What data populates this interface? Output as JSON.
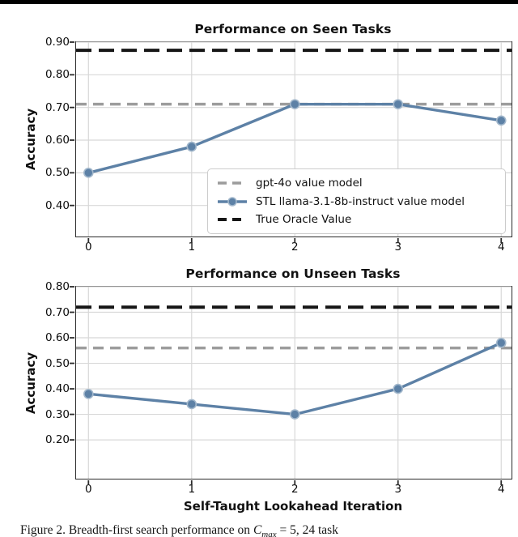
{
  "figure": {
    "caption": {
      "lead": "Figure 2. Breadth-first search performance on ",
      "var": "C",
      "sub": "max",
      "tail": " = 5, 24 task"
    },
    "colors": {
      "stl_line": "#5d81a6",
      "stl_marker_edge": "#a3b8cc",
      "gpt4o_line": "#9c9c9c",
      "oracle_line": "#161616",
      "grid": "#d8d8d8",
      "spine": "#2b2b2b",
      "top_rule": "#000000"
    }
  },
  "chart_data": [
    {
      "type": "line",
      "title": "Performance on Seen Tasks",
      "ylabel": "Accuracy",
      "xlabel": "",
      "x": [
        0,
        1,
        2,
        3,
        4
      ],
      "xtick_labels": [
        "0",
        "1",
        "2",
        "3",
        "4"
      ],
      "yticks": [
        0.4,
        0.5,
        0.6,
        0.7,
        0.8,
        0.9
      ],
      "ytick_labels": [
        "0.40",
        "0.50",
        "0.60",
        "0.70",
        "0.80",
        "0.90"
      ],
      "xlim": [
        -0.12,
        4.1
      ],
      "ylim": [
        0.305,
        0.9
      ],
      "grid": true,
      "series": [
        {
          "name": "gpt-4o value model",
          "kind": "hline",
          "value": 0.71,
          "color": "#9c9c9c",
          "width": 3.5,
          "dash": "13 8"
        },
        {
          "name": "STL llama-3.1-8b-instruct value model",
          "kind": "line-marker",
          "values": [
            0.5,
            0.58,
            0.71,
            0.71,
            0.66
          ],
          "color": "#5d81a6",
          "marker_edge": "#a3b8cc",
          "width": 3.4
        },
        {
          "name": "True Oracle Value",
          "kind": "hline",
          "value": 0.875,
          "color": "#161616",
          "width": 4,
          "dash": "19 9"
        }
      ],
      "legend": {
        "position": "lower right",
        "entries": [
          "gpt-4o value model",
          "STL llama-3.1-8b-instruct value model",
          "True Oracle Value"
        ]
      }
    },
    {
      "type": "line",
      "title": "Performance on Unseen Tasks",
      "ylabel": "Accuracy",
      "xlabel": "Self-Taught Lookahead Iteration",
      "x": [
        0,
        1,
        2,
        3,
        4
      ],
      "xtick_labels": [
        "0",
        "1",
        "2",
        "3",
        "4"
      ],
      "yticks": [
        0.2,
        0.3,
        0.4,
        0.5,
        0.6,
        0.7,
        0.8
      ],
      "ytick_labels": [
        "0.20",
        "0.30",
        "0.40",
        "0.50",
        "0.60",
        "0.70",
        "0.80"
      ],
      "xlim": [
        -0.12,
        4.1
      ],
      "ylim": [
        0.048,
        0.8
      ],
      "grid": true,
      "series": [
        {
          "name": "gpt-4o value model",
          "kind": "hline",
          "value": 0.56,
          "color": "#9c9c9c",
          "width": 3.5,
          "dash": "13 8"
        },
        {
          "name": "STL llama-3.1-8b-instruct value model",
          "kind": "line-marker",
          "values": [
            0.38,
            0.34,
            0.3,
            0.4,
            0.58
          ],
          "color": "#5d81a6",
          "marker_edge": "#a3b8cc",
          "width": 3.4
        },
        {
          "name": "True Oracle Value",
          "kind": "hline",
          "value": 0.72,
          "color": "#161616",
          "width": 4,
          "dash": "19 9"
        }
      ]
    }
  ]
}
